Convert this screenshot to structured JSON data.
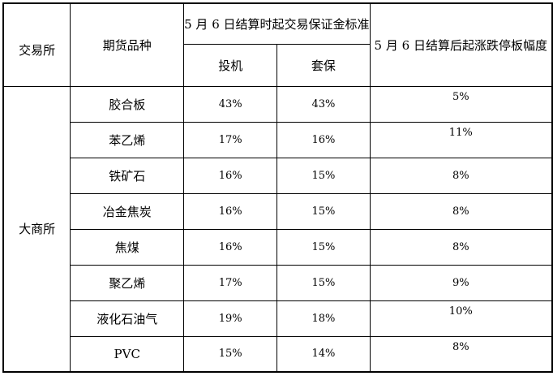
{
  "table": {
    "header": {
      "exchange": "交易所",
      "variety": "期货品种",
      "margin_group": "5 月 6 日结算时起交易保证金标准",
      "speculation": "投机",
      "hedging": "套保",
      "price_limit": "5 月 6 日结算后起涨跌停板幅度"
    },
    "exchange_name": "大商所",
    "rows": [
      {
        "variety": "胶合板",
        "speculation": "43%",
        "hedging": "43%",
        "limit": "5%"
      },
      {
        "variety": "苯乙烯",
        "speculation": "17%",
        "hedging": "16%",
        "limit": "11%"
      },
      {
        "variety": "铁矿石",
        "speculation": "16%",
        "hedging": "15%",
        "limit": "8%"
      },
      {
        "variety": "冶金焦炭",
        "speculation": "16%",
        "hedging": "15%",
        "limit": "8%"
      },
      {
        "variety": "焦煤",
        "speculation": "16%",
        "hedging": "15%",
        "limit": "8%"
      },
      {
        "variety": "聚乙烯",
        "speculation": "17%",
        "hedging": "15%",
        "limit": "9%"
      },
      {
        "variety": "液化石油气",
        "speculation": "19%",
        "hedging": "18%",
        "limit": "10%"
      },
      {
        "variety": "PVC",
        "speculation": "15%",
        "hedging": "14%",
        "limit": "8%"
      }
    ]
  },
  "colors": {
    "background": "#ffffff",
    "border": "#000000",
    "text": "#000000"
  }
}
